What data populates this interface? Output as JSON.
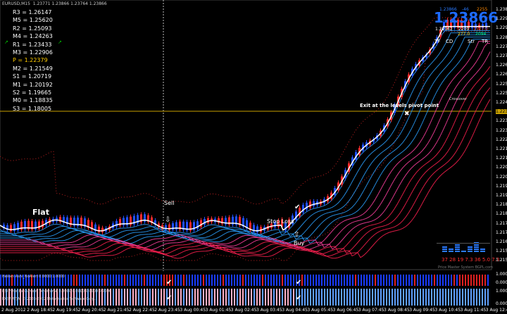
{
  "header": {
    "symbol": "EURUSD,M15",
    "ohlc": "1.23771 1.23866 1.23764 1.23866"
  },
  "pivots": [
    {
      "label": "R3 = 1.26147",
      "color": "#ffffff"
    },
    {
      "label": "M5 = 1.25620",
      "color": "#ffffff"
    },
    {
      "label": "R2 = 1.25093",
      "color": "#ffffff"
    },
    {
      "label": "M4 = 1.24263",
      "color": "#ffffff"
    },
    {
      "label": "R1 = 1.23433",
      "color": "#ffffff"
    },
    {
      "label": "M3 = 1.22906",
      "color": "#ffffff"
    },
    {
      "label": "P  = 1.22379",
      "color": "#ffcc00"
    },
    {
      "label": "M2 = 1.21549",
      "color": "#ffffff"
    },
    {
      "label": "S1 = 1.20719",
      "color": "#ffffff"
    },
    {
      "label": "M1 = 1.20192",
      "color": "#ffffff"
    },
    {
      "label": "S2 = 1.19665",
      "color": "#ffffff"
    },
    {
      "label": "M0 = 1.18835",
      "color": "#ffffff"
    },
    {
      "label": "S3 = 1.18005",
      "color": "#ffffff"
    }
  ],
  "big_price": "1.23866",
  "info_panel": {
    "top_small": "1.23866",
    "spread": "-46",
    "pts": "2255",
    "line2_a": "1.21942",
    "line2_b": "2209",
    "line2_c": "1527.0",
    "line3": "277.0",
    "line3_b": "2094",
    "headers": [
      "TF",
      "CD",
      "Str",
      "TR"
    ]
  },
  "annotations": {
    "flat": "Flat",
    "sell": "Sell",
    "stop_loss": "Stop Loss",
    "buy": "Buy",
    "exit": "Exit at the levels pivot point",
    "crossover": "Crossover"
  },
  "bottom_numbers": "37 28 19 7.3 36 5.0 7.3",
  "watermark": "Price Master System BGPL.com",
  "indicators": [
    {
      "label": "Heiken Ashi_NoAlert 0.0000 1.0000"
    },
    {
      "label": "RSI Filter Ex Current Timeframe 0.0000 0.0000 0.0000 0.0000"
    },
    {
      "label": "FX(MMT)A, © 2003-2012 MetaQuotes Software Corp."
    }
  ],
  "price_axis": [
    {
      "value": "1.23866",
      "highlight": false
    },
    {
      "value": "1.22960",
      "highlight": false
    },
    {
      "value": "1.22905",
      "highlight": false
    },
    {
      "value": "1.22850",
      "highlight": false
    },
    {
      "value": "1.22795",
      "highlight": false
    },
    {
      "value": "1.22740",
      "highlight": false
    },
    {
      "value": "1.22690",
      "highlight": false
    },
    {
      "value": "1.22635",
      "highlight": false
    },
    {
      "value": "1.22580",
      "highlight": false
    },
    {
      "value": "1.22525",
      "highlight": false
    },
    {
      "value": "1.22470",
      "highlight": false
    },
    {
      "value": "1.22379",
      "highlight": true
    },
    {
      "value": "1.22360",
      "highlight": false
    },
    {
      "value": "1.22305",
      "highlight": false
    },
    {
      "value": "1.22250",
      "highlight": false
    },
    {
      "value": "1.22195",
      "highlight": false
    },
    {
      "value": "1.22140",
      "highlight": false
    },
    {
      "value": "1.22085",
      "highlight": false
    },
    {
      "value": "1.22030",
      "highlight": false
    },
    {
      "value": "1.21975",
      "highlight": false
    },
    {
      "value": "1.21920",
      "highlight": false
    },
    {
      "value": "1.21865",
      "highlight": false
    },
    {
      "value": "1.21810",
      "highlight": false
    },
    {
      "value": "1.21755",
      "highlight": false
    },
    {
      "value": "1.21700",
      "highlight": false
    },
    {
      "value": "1.21645",
      "highlight": false
    },
    {
      "value": "1.21590",
      "highlight": false
    },
    {
      "value": "1.21540",
      "highlight": false
    }
  ],
  "indicator_axis": [
    "1.0000",
    "0.0000",
    "1.0000",
    "0.0000"
  ],
  "time_axis": [
    "2 Aug 2012",
    "2 Aug 18:45",
    "2 Aug 19:45",
    "2 Aug 20:45",
    "2 Aug 21:45",
    "2 Aug 22:45",
    "2 Aug 23:45",
    "3 Aug 00:45",
    "3 Aug 01:45",
    "3 Aug 02:45",
    "3 Aug 03:45",
    "3 Aug 04:45",
    "3 Aug 05:45",
    "3 Aug 06:45",
    "3 Aug 07:45",
    "3 Aug 08:45",
    "3 Aug 09:45",
    "3 Aug 10:45",
    "3 Aug 11:45",
    "3 Aug 12:45"
  ],
  "colors": {
    "bg": "#000000",
    "pivot_line": "#c8a000",
    "up": "#1e50ff",
    "down": "#ff2a2a",
    "ma_fast": "#ffffff",
    "ma_blue": "#2aa0ff",
    "ma_red": "#ff2050",
    "envelope": "#c02020"
  }
}
